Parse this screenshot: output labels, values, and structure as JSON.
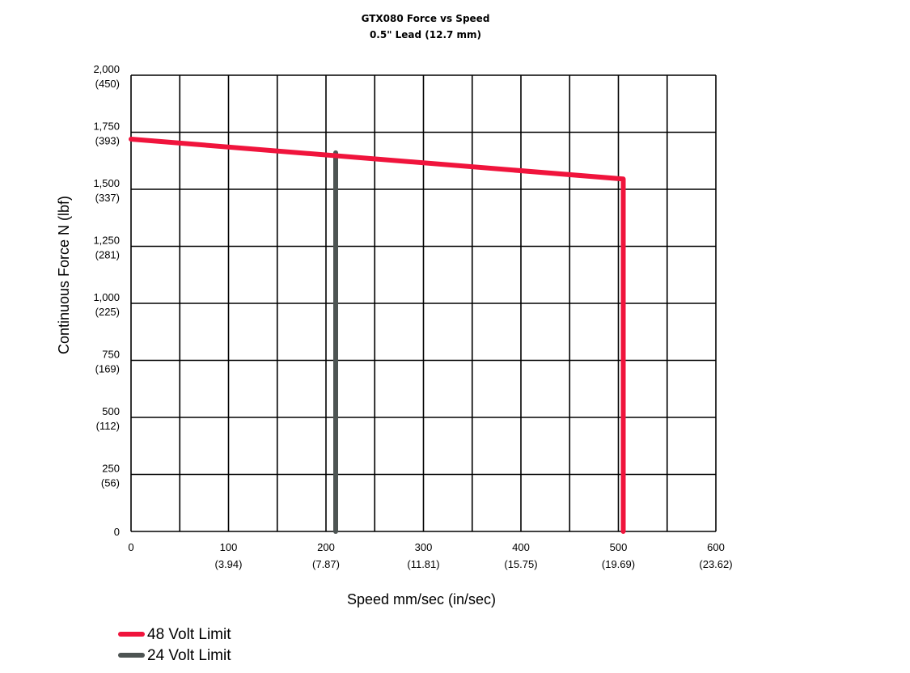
{
  "chart_data": {
    "type": "line",
    "title": "GTX080 Force vs Speed",
    "subtitle": "0.5\" Lead (12.7 mm)",
    "xlabel": "Speed mm/sec (in/sec)",
    "ylabel": "Continuous Force N (lbf)",
    "xlim": [
      0,
      600
    ],
    "ylim": [
      0,
      2000
    ],
    "grid": true,
    "legend_position": "bottom-left",
    "x_ticks": [
      {
        "value": 0,
        "label": "0",
        "sub": ""
      },
      {
        "value": 100,
        "label": "100",
        "sub": "(3.94)"
      },
      {
        "value": 200,
        "label": "200",
        "sub": "(7.87)"
      },
      {
        "value": 300,
        "label": "300",
        "sub": "(11.81)"
      },
      {
        "value": 400,
        "label": "400",
        "sub": "(15.75)"
      },
      {
        "value": 500,
        "label": "500",
        "sub": "(19.69)"
      },
      {
        "value": 600,
        "label": "600",
        "sub": "(23.62)"
      }
    ],
    "y_ticks": [
      {
        "value": 0,
        "label": "0",
        "sub": ""
      },
      {
        "value": 250,
        "label": "250",
        "sub": "(56)"
      },
      {
        "value": 500,
        "label": "500",
        "sub": "(112)"
      },
      {
        "value": 750,
        "label": "750",
        "sub": "(169)"
      },
      {
        "value": 1000,
        "label": "1,000",
        "sub": "(225)"
      },
      {
        "value": 1250,
        "label": "1,250",
        "sub": "(281)"
      },
      {
        "value": 1500,
        "label": "1,500",
        "sub": "(337)"
      },
      {
        "value": 1750,
        "label": "1,750",
        "sub": "(393)"
      },
      {
        "value": 2000,
        "label": "2,000",
        "sub": "(450)"
      }
    ],
    "series": [
      {
        "name": "48 Volt Limit",
        "color": "#f0143c",
        "points": [
          [
            0,
            1720
          ],
          [
            505,
            1545
          ],
          [
            505,
            0
          ]
        ]
      },
      {
        "name": "24 Volt Limit",
        "color": "#4d5453",
        "points": [
          [
            210,
            1660
          ],
          [
            210,
            0
          ]
        ]
      }
    ]
  }
}
